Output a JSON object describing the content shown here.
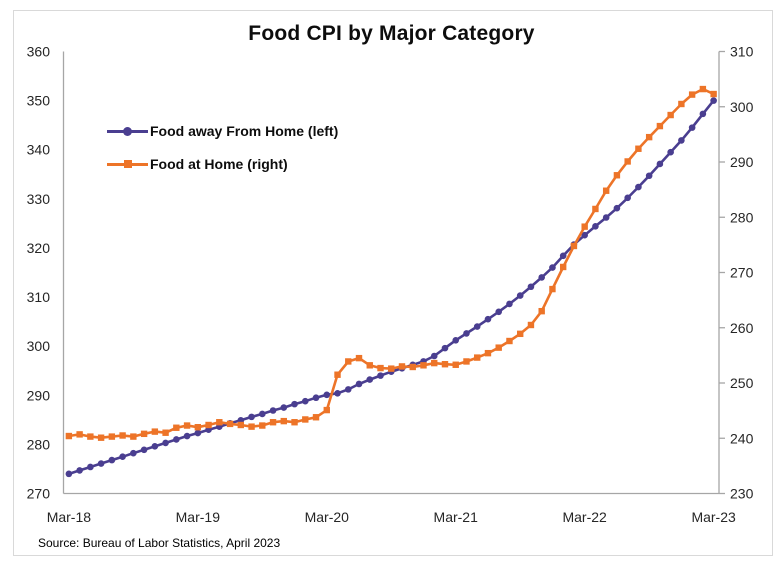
{
  "title": "Food CPI by Major Category",
  "source_note": "Source: Bureau of Labor Statistics, April 2023",
  "colors": {
    "series_purple": "#4a3e90",
    "series_orange": "#ed7428",
    "axis_line": "#a6a6a6",
    "tick_text": "#262626",
    "chart_border": "#d9d9d9",
    "background": "#ffffff"
  },
  "chart_data": {
    "type": "line",
    "title": "Food CPI by Major Category",
    "source": "Source: Bureau of Labor Statistics, April 2023",
    "grid": false,
    "legend_position": "top-left-inside",
    "x_tick_labels": [
      "Mar-18",
      "Mar-19",
      "Mar-20",
      "Mar-21",
      "Mar-22",
      "Mar-23"
    ],
    "x_tick_month_index": [
      0,
      12,
      24,
      36,
      48,
      60
    ],
    "x_points_per_series": 61,
    "left_axis": {
      "min": 270,
      "max": 360,
      "step": 10,
      "ticks": [
        270,
        280,
        290,
        300,
        310,
        320,
        330,
        340,
        350,
        360
      ]
    },
    "right_axis": {
      "min": 230,
      "max": 310,
      "step": 10,
      "ticks": [
        230,
        240,
        250,
        260,
        270,
        280,
        290,
        300,
        310
      ]
    },
    "series": [
      {
        "name": "Food away From Home (left)",
        "axis": "left",
        "color": "#4a3e90",
        "marker": "circle",
        "values": [
          274.0,
          274.7,
          275.4,
          276.1,
          276.8,
          277.5,
          278.2,
          278.9,
          279.6,
          280.3,
          281.0,
          281.7,
          282.3,
          283.0,
          283.6,
          284.3,
          284.9,
          285.6,
          286.2,
          286.9,
          287.5,
          288.2,
          288.8,
          289.5,
          290.1,
          290.4,
          291.2,
          292.3,
          293.2,
          294.0,
          294.8,
          295.5,
          296.2,
          296.9,
          298.0,
          299.6,
          301.2,
          302.6,
          304.0,
          305.5,
          307.0,
          308.6,
          310.3,
          312.1,
          314.0,
          316.0,
          318.4,
          320.7,
          322.6,
          324.4,
          326.2,
          328.1,
          330.2,
          332.4,
          334.7,
          337.1,
          339.5,
          341.9,
          344.5,
          347.3,
          350.0
        ]
      },
      {
        "name": "Food at Home (right)",
        "axis": "right",
        "color": "#ed7428",
        "marker": "square",
        "values": [
          240.4,
          240.7,
          240.3,
          240.1,
          240.3,
          240.5,
          240.3,
          240.8,
          241.2,
          241.0,
          241.9,
          242.3,
          242.0,
          242.4,
          242.9,
          242.6,
          242.4,
          242.1,
          242.3,
          242.9,
          243.1,
          242.9,
          243.4,
          243.8,
          245.1,
          251.5,
          253.9,
          254.5,
          253.2,
          252.7,
          252.6,
          253.0,
          252.9,
          253.2,
          253.6,
          253.4,
          253.3,
          253.9,
          254.6,
          255.4,
          256.4,
          257.6,
          258.9,
          260.5,
          263.0,
          267.0,
          271.0,
          274.8,
          278.3,
          281.5,
          284.8,
          287.6,
          290.1,
          292.4,
          294.5,
          296.5,
          298.5,
          300.5,
          302.2,
          303.2,
          302.3
        ]
      }
    ]
  }
}
